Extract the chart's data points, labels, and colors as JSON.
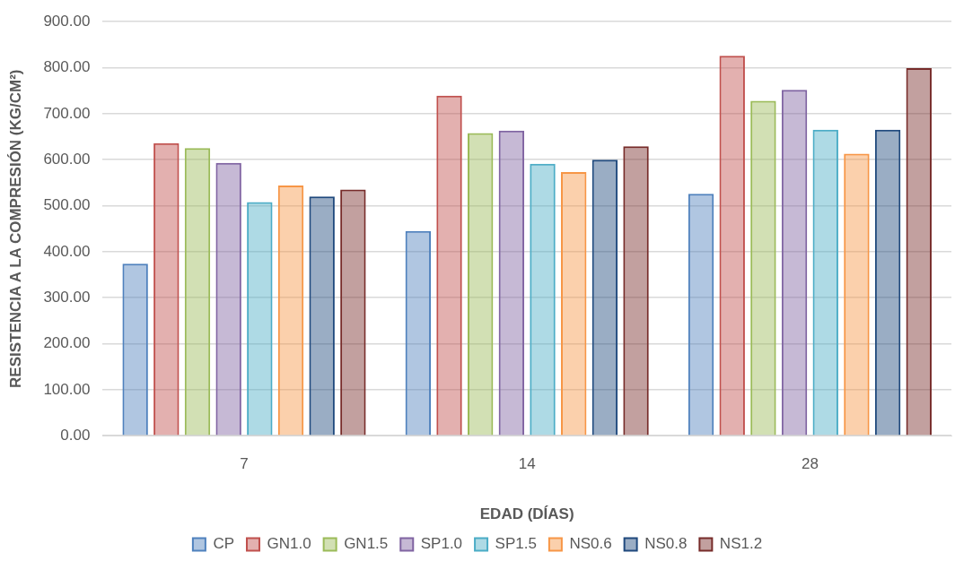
{
  "chart_data": {
    "type": "bar",
    "xlabel": "EDAD (DÍAS)",
    "ylabel": "RESISTENCIA A LA COMPRESIÓN (KG/CM²)",
    "categories": [
      "7",
      "14",
      "28"
    ],
    "series": [
      {
        "name": "CP",
        "color": "#4f81bd",
        "values": [
          374,
          445,
          526
        ]
      },
      {
        "name": "GN1.0",
        "color": "#c0504d",
        "values": [
          636,
          739,
          826
        ]
      },
      {
        "name": "GN1.5",
        "color": "#9bbb59",
        "values": [
          625,
          658,
          728
        ]
      },
      {
        "name": "SP1.0",
        "color": "#8064a2",
        "values": [
          593,
          663,
          752
        ]
      },
      {
        "name": "SP1.5",
        "color": "#4bacc6",
        "values": [
          508,
          591,
          665
        ]
      },
      {
        "name": "NS0.6",
        "color": "#f79646",
        "values": [
          544,
          573,
          613
        ]
      },
      {
        "name": "NS0.8",
        "color": "#1f497d",
        "values": [
          520,
          600,
          665
        ]
      },
      {
        "name": "NS1.2",
        "color": "#772c2a",
        "values": [
          535,
          629,
          799
        ]
      }
    ],
    "ylim": [
      0,
      900
    ],
    "yticks": [
      {
        "value": 0,
        "label": "0.00"
      },
      {
        "value": 100,
        "label": "100.00"
      },
      {
        "value": 200,
        "label": "200.00"
      },
      {
        "value": 300,
        "label": "300.00"
      },
      {
        "value": 400,
        "label": "400.00"
      },
      {
        "value": 500,
        "label": "500.00"
      },
      {
        "value": 600,
        "label": "600.00"
      },
      {
        "value": 700,
        "label": "700.00"
      },
      {
        "value": 800,
        "label": "800.00"
      },
      {
        "value": 900,
        "label": "900.00"
      }
    ],
    "grid": "y",
    "legend": "bottom"
  }
}
